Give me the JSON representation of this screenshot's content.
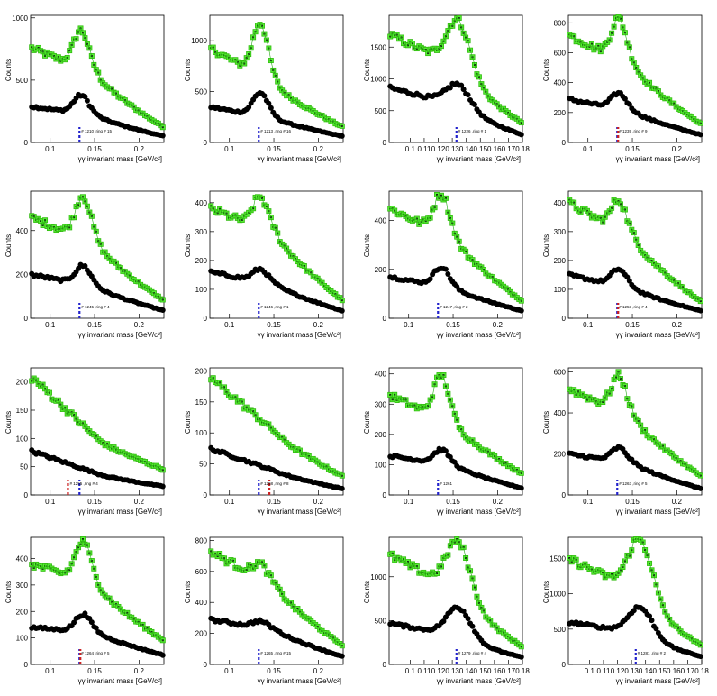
{
  "chart_data": [
    {
      "type": "scatter",
      "xlabel": "γγ invariant mass [GeV/c²]",
      "ylabel": "Counts",
      "xlim": [
        0.078,
        0.228
      ],
      "ylim": [
        0,
        1020
      ],
      "xticks": [
        0.1,
        0.15,
        0.2
      ],
      "xtick_labels": [
        "0.1",
        "0.15",
        "0.2"
      ],
      "yticks": [
        0,
        500,
        1000
      ],
      "ytick_labels": [
        "0",
        "500",
        "1000"
      ],
      "peak": 0.135,
      "top_base": [
        760,
        540,
        120
      ],
      "top_peak": 900,
      "bot_base": [
        290,
        210,
        50
      ],
      "bot_peak": 380,
      "annotation": "# 1210 ,ring # 15",
      "markers": [
        {
          "x": 0.133,
          "color": "#2222cc"
        }
      ]
    },
    {
      "type": "scatter",
      "xlabel": "γγ invariant mass [GeV/c²]",
      "ylabel": "Counts",
      "xlim": [
        0.078,
        0.228
      ],
      "ylim": [
        0,
        1250
      ],
      "xticks": [
        0.1,
        0.15,
        0.2
      ],
      "xtick_labels": [
        "0.1",
        "0.15",
        "0.2"
      ],
      "yticks": [
        0,
        500,
        1000
      ],
      "ytick_labels": [
        "0",
        "500",
        "1000"
      ],
      "peak": 0.135,
      "top_base": [
        930,
        560,
        150
      ],
      "top_peak": 1180,
      "bot_base": [
        350,
        230,
        60
      ],
      "bot_peak": 490,
      "annotation": "# 1213 ,ring # 16",
      "markers": [
        {
          "x": 0.133,
          "color": "#2222cc"
        }
      ]
    },
    {
      "type": "scatter",
      "xlabel": "γγ invariant mass [GeV/c²]",
      "ylabel": "Counts",
      "xlim": [
        0.085,
        0.18
      ],
      "ylim": [
        0,
        2000
      ],
      "xticks": [
        0.1,
        0.11,
        0.12,
        0.13,
        0.14,
        0.15,
        0.16,
        0.17,
        0.18
      ],
      "xtick_labels": [
        "0.1",
        "0.11",
        "0.12",
        "0.13",
        "0.14",
        "0.15",
        "0.16",
        "0.17",
        "0.18"
      ],
      "yticks": [
        0,
        500,
        1000,
        1500
      ],
      "ytick_labels": [
        "0",
        "500",
        "1000",
        "1500"
      ],
      "peak": 0.135,
      "top_base": [
        1700,
        1200,
        300
      ],
      "top_peak": 1900,
      "bot_base": [
        860,
        600,
        120
      ],
      "bot_peak": 900,
      "annotation": "# 1226 ,ring # 1",
      "markers": [
        {
          "x": 0.133,
          "color": "#2222cc"
        }
      ]
    },
    {
      "type": "scatter",
      "xlabel": "γγ invariant mass [GeV/c²]",
      "ylabel": "Counts",
      "xlim": [
        0.078,
        0.228
      ],
      "ylim": [
        0,
        850
      ],
      "xticks": [
        0.1,
        0.15,
        0.2
      ],
      "xtick_labels": [
        "0.1",
        "0.15",
        "0.2"
      ],
      "yticks": [
        0,
        200,
        400,
        600,
        800
      ],
      "ytick_labels": [
        "0",
        "200",
        "400",
        "600",
        "800"
      ],
      "peak": 0.135,
      "top_base": [
        720,
        500,
        120
      ],
      "top_peak": 830,
      "bot_base": [
        290,
        200,
        50
      ],
      "bot_peak": 330,
      "annotation": "# 1239 ,ring # 9",
      "markers": [
        {
          "x": 0.133,
          "color": "#2222cc"
        },
        {
          "x": 0.134,
          "color": "#cc2222"
        }
      ]
    },
    {
      "type": "scatter",
      "xlabel": "γγ invariant mass [GeV/c²]",
      "ylabel": "Counts",
      "xlim": [
        0.078,
        0.228
      ],
      "ylim": [
        0,
        580
      ],
      "xticks": [
        0.1,
        0.15,
        0.2
      ],
      "xtick_labels": [
        "0.1",
        "0.15",
        "0.2"
      ],
      "yticks": [
        0,
        200,
        400
      ],
      "ytick_labels": [
        "0",
        "200",
        "400"
      ],
      "peak": 0.137,
      "top_base": [
        460,
        340,
        80
      ],
      "top_peak": 560,
      "bot_base": [
        200,
        140,
        35
      ],
      "bot_peak": 240,
      "annotation": "# 1245 ,ring # 4",
      "markers": [
        {
          "x": 0.133,
          "color": "#2222cc"
        }
      ]
    },
    {
      "type": "scatter",
      "xlabel": "γγ invariant mass [GeV/c²]",
      "ylabel": "Counts",
      "xlim": [
        0.078,
        0.228
      ],
      "ylim": [
        0,
        440
      ],
      "xticks": [
        0.1,
        0.15,
        0.2
      ],
      "xtick_labels": [
        "0.1",
        "0.15",
        "0.2"
      ],
      "yticks": [
        0,
        100,
        200,
        300,
        400
      ],
      "ytick_labels": [
        "0",
        "100",
        "200",
        "300",
        "400"
      ],
      "peak": 0.135,
      "top_base": [
        380,
        290,
        60
      ],
      "top_peak": 420,
      "bot_base": [
        160,
        115,
        25
      ],
      "bot_peak": 170,
      "annotation": "# 1246 ,ring # 1",
      "markers": [
        {
          "x": 0.133,
          "color": "#2222cc"
        }
      ]
    },
    {
      "type": "scatter",
      "xlabel": "γγ invariant mass [GeV/c²]",
      "ylabel": "Counts",
      "xlim": [
        0.078,
        0.228
      ],
      "ylim": [
        0,
        520
      ],
      "xticks": [
        0.1,
        0.15,
        0.2
      ],
      "xtick_labels": [
        "0.1",
        "0.15",
        "0.2"
      ],
      "yticks": [
        0,
        200,
        400
      ],
      "ytick_labels": [
        "0",
        "200",
        "400"
      ],
      "peak": 0.137,
      "top_base": [
        450,
        320,
        70
      ],
      "top_peak": 510,
      "bot_base": [
        170,
        120,
        30
      ],
      "bot_peak": 210,
      "annotation": "# 1247 ,ring # 2",
      "markers": [
        {
          "x": 0.133,
          "color": "#2222cc"
        }
      ]
    },
    {
      "type": "scatter",
      "xlabel": "γγ invariant mass [GeV/c²]",
      "ylabel": "Counts",
      "xlim": [
        0.078,
        0.228
      ],
      "ylim": [
        0,
        440
      ],
      "xticks": [
        0.1,
        0.15,
        0.2
      ],
      "xtick_labels": [
        "0.1",
        "0.15",
        "0.2"
      ],
      "yticks": [
        0,
        100,
        200,
        300,
        400
      ],
      "ytick_labels": [
        "0",
        "100",
        "200",
        "300",
        "400"
      ],
      "peak": 0.135,
      "top_base": [
        400,
        270,
        55
      ],
      "top_peak": 410,
      "bot_base": [
        150,
        100,
        25
      ],
      "bot_peak": 170,
      "annotation": "# 1253 ,ring # 4",
      "markers": [
        {
          "x": 0.133,
          "color": "#2222cc"
        },
        {
          "x": 0.134,
          "color": "#cc2222"
        }
      ]
    },
    {
      "type": "scatter",
      "xlabel": "γγ invariant mass [GeV/c²]",
      "ylabel": "Counts",
      "xlim": [
        0.078,
        0.228
      ],
      "ylim": [
        0,
        225
      ],
      "xticks": [
        0.1,
        0.15,
        0.2
      ],
      "xtick_labels": [
        "0.1",
        "0.15",
        "0.2"
      ],
      "yticks": [
        0,
        50,
        100,
        150,
        200
      ],
      "ytick_labels": [
        "0",
        "50",
        "100",
        "150",
        "200"
      ],
      "peak": 0.135,
      "top_base": [
        210,
        100,
        45
      ],
      "top_peak": 0,
      "bot_base": [
        78,
        38,
        15
      ],
      "bot_peak": 0,
      "annotation": "# 1255 ,ring # 4",
      "markers": [
        {
          "x": 0.12,
          "color": "#cc2222"
        },
        {
          "x": 0.133,
          "color": "#2222cc"
        }
      ]
    },
    {
      "type": "scatter",
      "xlabel": "γγ invariant mass [GeV/c²]",
      "ylabel": "Counts",
      "xlim": [
        0.078,
        0.228
      ],
      "ylim": [
        0,
        205
      ],
      "xticks": [
        0.1,
        0.15,
        0.2
      ],
      "xtick_labels": [
        "0.1",
        "0.15",
        "0.2"
      ],
      "yticks": [
        0,
        50,
        100,
        150,
        200
      ],
      "ytick_labels": [
        "0",
        "50",
        "100",
        "150",
        "200"
      ],
      "peak": 0.135,
      "top_base": [
        190,
        100,
        30
      ],
      "top_peak": 0,
      "bot_base": [
        75,
        38,
        10
      ],
      "bot_peak": 0,
      "annotation": "# 1258 ,ring # 8",
      "markers": [
        {
          "x": 0.133,
          "color": "#2222cc"
        },
        {
          "x": 0.145,
          "color": "#cc2222"
        }
      ]
    },
    {
      "type": "scatter",
      "xlabel": "γγ invariant mass [GeV/c²]",
      "ylabel": "Counts",
      "xlim": [
        0.078,
        0.228
      ],
      "ylim": [
        0,
        420
      ],
      "xticks": [
        0.1,
        0.15,
        0.2
      ],
      "xtick_labels": [
        "0.1",
        "0.15",
        "0.2"
      ],
      "yticks": [
        0,
        100,
        200,
        300,
        400
      ],
      "ytick_labels": [
        "0",
        "100",
        "200",
        "300",
        "400"
      ],
      "peak": 0.137,
      "top_base": [
        330,
        230,
        70
      ],
      "top_peak": 395,
      "bot_base": [
        130,
        95,
        22
      ],
      "bot_peak": 150,
      "annotation": "# 1261",
      "markers": [
        {
          "x": 0.133,
          "color": "#2222cc"
        }
      ]
    },
    {
      "type": "scatter",
      "xlabel": "γγ invariant mass [GeV/c²]",
      "ylabel": "Counts",
      "xlim": [
        0.078,
        0.228
      ],
      "ylim": [
        0,
        620
      ],
      "xticks": [
        0.1,
        0.15,
        0.2
      ],
      "xtick_labels": [
        "0.1",
        "0.15",
        "0.2"
      ],
      "yticks": [
        0,
        200,
        400,
        600
      ],
      "ytick_labels": [
        "0",
        "200",
        "400",
        "600"
      ],
      "peak": 0.135,
      "top_base": [
        520,
        370,
        90
      ],
      "top_peak": 580,
      "bot_base": [
        200,
        150,
        30
      ],
      "bot_peak": 230,
      "annotation": "# 1263 ,ring # 5",
      "markers": [
        {
          "x": 0.133,
          "color": "#2222cc"
        }
      ]
    },
    {
      "type": "scatter",
      "xlabel": "γγ invariant mass [GeV/c²]",
      "ylabel": "Counts",
      "xlim": [
        0.078,
        0.228
      ],
      "ylim": [
        0,
        480
      ],
      "xticks": [
        0.1,
        0.15,
        0.2
      ],
      "xtick_labels": [
        "0.1",
        "0.15",
        "0.2"
      ],
      "yticks": [
        0,
        100,
        200,
        300,
        400
      ],
      "ytick_labels": [
        "0",
        "100",
        "200",
        "300",
        "400"
      ],
      "peak": 0.137,
      "top_base": [
        380,
        300,
        90
      ],
      "top_peak": 465,
      "bot_base": [
        140,
        120,
        35
      ],
      "bot_peak": 190,
      "annotation": "# 1264 ,ring # 5",
      "markers": [
        {
          "x": 0.133,
          "color": "#2222cc"
        },
        {
          "x": 0.134,
          "color": "#cc2222"
        }
      ]
    },
    {
      "type": "scatter",
      "xlabel": "γγ invariant mass [GeV/c²]",
      "ylabel": "Counts",
      "xlim": [
        0.078,
        0.228
      ],
      "ylim": [
        0,
        820
      ],
      "xticks": [
        0.1,
        0.15,
        0.2
      ],
      "xtick_labels": [
        "0.1",
        "0.15",
        "0.2"
      ],
      "yticks": [
        0,
        200,
        400,
        600,
        800
      ],
      "ytick_labels": [
        "0",
        "200",
        "400",
        "600",
        "800"
      ],
      "peak": 0.135,
      "top_base": [
        730,
        500,
        120
      ],
      "top_peak": 650,
      "bot_base": [
        290,
        220,
        50
      ],
      "bot_peak": 280,
      "annotation": "# 1265 ,ring # 15",
      "markers": [
        {
          "x": 0.133,
          "color": "#2222cc"
        }
      ]
    },
    {
      "type": "scatter",
      "xlabel": "γγ invariant mass [GeV/c²]",
      "ylabel": "Counts",
      "xlim": [
        0.085,
        0.18
      ],
      "ylim": [
        0,
        1450
      ],
      "xticks": [
        0.1,
        0.11,
        0.12,
        0.13,
        0.14,
        0.15,
        0.16,
        0.17,
        0.18
      ],
      "xtick_labels": [
        "0.1",
        "0.11",
        "0.12",
        "0.13",
        "0.14",
        "0.15",
        "0.16",
        "0.17",
        "0.18"
      ],
      "yticks": [
        0,
        500,
        1000
      ],
      "ytick_labels": [
        "0",
        "500",
        "1000"
      ],
      "peak": 0.135,
      "top_base": [
        1250,
        850,
        200
      ],
      "top_peak": 1390,
      "bot_base": [
        470,
        330,
        80
      ],
      "bot_peak": 650,
      "annotation": "# 1279 ,ring # 4",
      "markers": [
        {
          "x": 0.133,
          "color": "#2222cc"
        }
      ]
    },
    {
      "type": "scatter",
      "xlabel": "γγ invariant mass [GeV/c²]",
      "ylabel": "Counts",
      "xlim": [
        0.085,
        0.18
      ],
      "ylim": [
        0,
        1800
      ],
      "xticks": [
        0.1,
        0.11,
        0.12,
        0.13,
        0.14,
        0.15,
        0.16,
        0.17,
        0.18
      ],
      "xtick_labels": [
        "0.1",
        "0.11",
        "0.12",
        "0.13",
        "0.14",
        "0.15",
        "0.16",
        "0.17",
        "0.18"
      ],
      "yticks": [
        0,
        500,
        1000,
        1500
      ],
      "ytick_labels": [
        "0",
        "500",
        "1000",
        "1500"
      ],
      "peak": 0.137,
      "top_base": [
        1500,
        1050,
        260
      ],
      "top_peak": 1750,
      "bot_base": [
        600,
        450,
        110
      ],
      "bot_peak": 800,
      "annotation": "# 1281 ,ring # 2",
      "markers": [
        {
          "x": 0.133,
          "color": "#2222cc"
        }
      ]
    }
  ]
}
